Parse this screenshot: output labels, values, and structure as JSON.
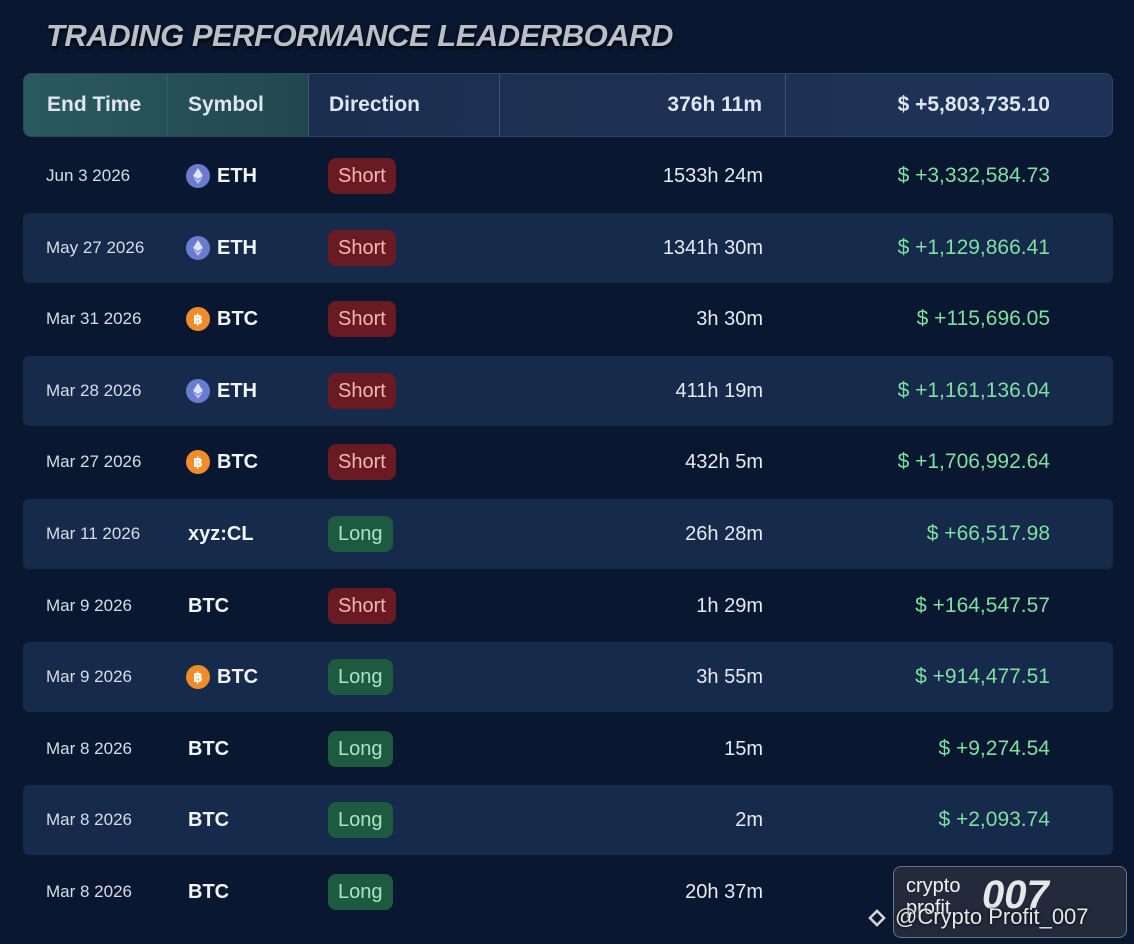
{
  "header": {
    "title": "TRADING PERFORMANCE LEADERBOARD"
  },
  "table": {
    "columns": [
      "End Time",
      "Symbol",
      "Direction",
      "376h 11m",
      "$ +5,803,735.10"
    ],
    "rows": [
      {
        "end_time": "Jun 3 2026",
        "icon": "eth",
        "symbol": "ETH",
        "direction": "Short",
        "duration": "1533h 24m",
        "pnl": "$ +3,332,584.73"
      },
      {
        "end_time": "May 27 2026",
        "icon": "eth",
        "symbol": "ETH",
        "direction": "Short",
        "duration": "1341h 30m",
        "pnl": "$ +1,129,866.41"
      },
      {
        "end_time": "Mar 31 2026",
        "icon": "btc",
        "symbol": "BTC",
        "direction": "Short",
        "duration": "3h 30m",
        "pnl": "$ +115,696.05"
      },
      {
        "end_time": "Mar 28 2026",
        "icon": "eth",
        "symbol": "ETH",
        "direction": "Short",
        "duration": "411h 19m",
        "pnl": "$ +1,161,136.04"
      },
      {
        "end_time": "Mar 27 2026",
        "icon": "btc",
        "symbol": "BTC",
        "direction": "Short",
        "duration": "432h 5m",
        "pnl": "$ +1,706,992.64"
      },
      {
        "end_time": "Mar 11 2026",
        "symbol": "xyz:CL",
        "direction": "Long",
        "duration": "26h 28m",
        "pnl": "$ +66,517.98"
      },
      {
        "end_time": "Mar 9 2026",
        "symbol": "BTC",
        "direction": "Short",
        "duration": "1h 29m",
        "pnl": "$ +164,547.57"
      },
      {
        "end_time": "Mar 9 2026",
        "icon": "btc",
        "symbol": "BTC",
        "direction": "Long",
        "duration": "3h 55m",
        "pnl": "$ +914,477.51"
      },
      {
        "end_time": "Mar 8 2026",
        "symbol": "BTC",
        "direction": "Long",
        "duration": "15m",
        "pnl": "$ +9,274.54"
      },
      {
        "end_time": "Mar 8 2026",
        "symbol": "BTC",
        "direction": "Long",
        "duration": "2m",
        "pnl": "$ +2,093.74"
      },
      {
        "end_time": "Mar 8 2026",
        "symbol": "BTC",
        "direction": "Long",
        "duration": "20h 37m"
      }
    ]
  },
  "watermark": {
    "brand": "crypto profit",
    "mark": "007",
    "handle": "@Crypto Profit_007"
  }
}
